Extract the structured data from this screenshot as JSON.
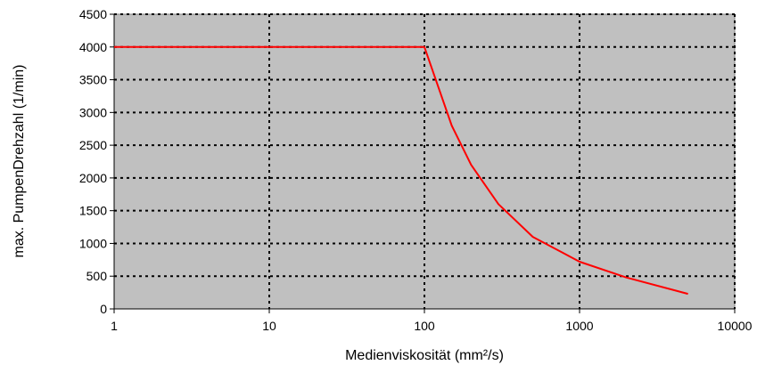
{
  "chart_data": {
    "type": "line",
    "title": "",
    "xlabel": "Medienviskosität (mm²/s)",
    "ylabel": "max. PumpenDrehzahl (1/min)",
    "x_scale": "log",
    "xlim": [
      1,
      10000
    ],
    "ylim": [
      0,
      4500
    ],
    "x_ticks": [
      "1",
      "10",
      "100",
      "1000",
      "10000"
    ],
    "y_ticks": [
      "0",
      "500",
      "1000",
      "1500",
      "2000",
      "2500",
      "3000",
      "3500",
      "4000",
      "4500"
    ],
    "grid": true,
    "legend": "none",
    "series": [
      {
        "x": [
          1,
          100,
          150,
          200,
          300,
          500,
          1000,
          2000,
          5000
        ],
        "y": [
          4000,
          4000,
          2800,
          2200,
          1600,
          1100,
          720,
          480,
          230
        ]
      }
    ]
  },
  "colors": {
    "plot_background": "#c0c0c0",
    "grid": "#000000",
    "series_line": "#ff0000"
  }
}
